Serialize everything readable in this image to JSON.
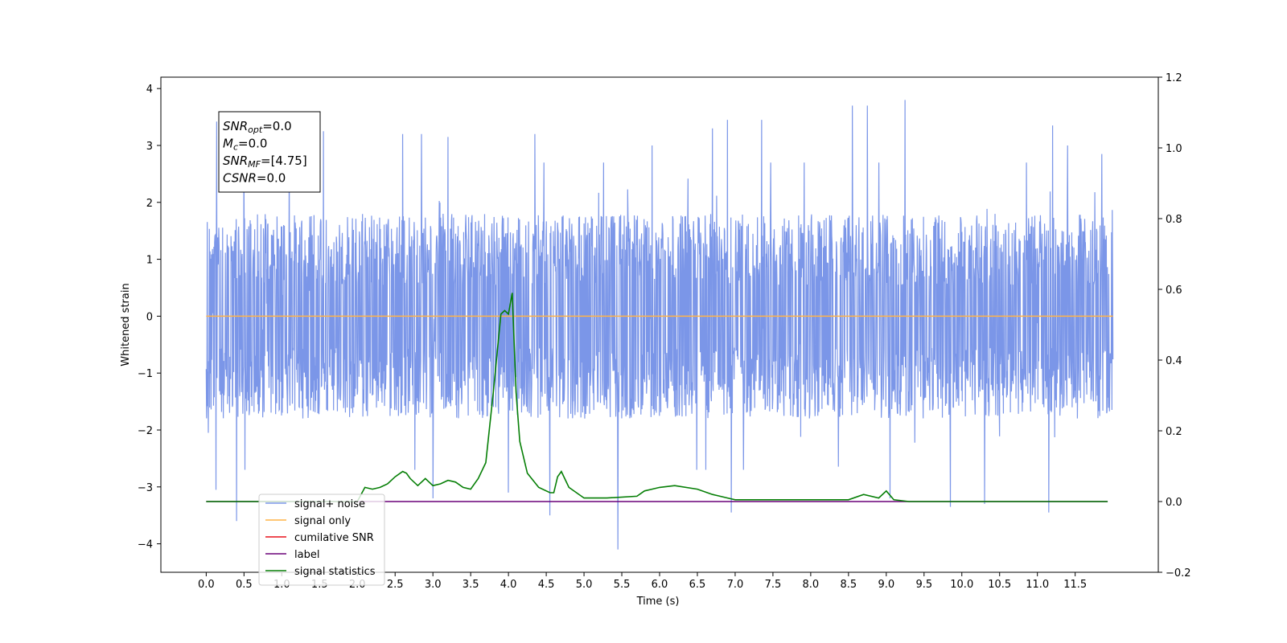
{
  "chart_data": {
    "type": "line",
    "xlabel": "Time (s)",
    "ylabel": "Whitened strain",
    "xlim": [
      -0.6,
      12.6
    ],
    "ylim": [
      -4.5,
      4.2
    ],
    "y2lim": [
      -0.2,
      1.2
    ],
    "x_ticks": [
      0.0,
      0.5,
      1.0,
      1.5,
      2.0,
      2.5,
      3.0,
      3.5,
      4.0,
      4.5,
      5.0,
      5.5,
      6.0,
      6.5,
      7.0,
      7.5,
      8.0,
      8.5,
      9.0,
      9.5,
      10.0,
      10.5,
      11.0,
      11.5
    ],
    "x_tick_labels": [
      "0.0",
      "0.5",
      "1.0",
      "1.5",
      "2.0",
      "2.5",
      "3.0",
      "3.5",
      "4.0",
      "4.5",
      "5.0",
      "5.5",
      "6.0",
      "6.5",
      "7.0",
      "7.5",
      "8.0",
      "8.5",
      "9.0",
      "9.5",
      "10.0",
      "10.5",
      "11.0",
      "11.5"
    ],
    "y_ticks": [
      -4,
      -3,
      -2,
      -1,
      0,
      1,
      2,
      3,
      4
    ],
    "y_tick_labels": [
      "−4",
      "−3",
      "−2",
      "−1",
      "0",
      "1",
      "2",
      "3",
      "4"
    ],
    "y2_ticks": [
      -0.2,
      0.0,
      0.2,
      0.4,
      0.6,
      0.8,
      1.0,
      1.2
    ],
    "y2_tick_labels": [
      "−0.2",
      "0.0",
      "0.2",
      "0.4",
      "0.6",
      "0.8",
      "1.0",
      "1.2"
    ],
    "grid": false,
    "legend_position": "lower-left",
    "annotation": {
      "lines": [
        {
          "main": "SNR",
          "sub": "opt",
          "rest": "=0.0"
        },
        {
          "main": "M",
          "sub": "c",
          "rest": "=0.0"
        },
        {
          "main": "SNR",
          "sub": "MF",
          "rest": "=[4.75]"
        },
        {
          "main": "CSNR",
          "sub": "",
          "rest": "=0.0"
        }
      ]
    },
    "series": [
      {
        "name": "signal+ noise",
        "color": "#7b96e8",
        "axis": "left",
        "kind": "noise",
        "x_range": [
          0.0,
          12.0
        ],
        "typical_range": [
          -1.8,
          1.8
        ],
        "peaks": [
          {
            "x": 0.03,
            "y": -2.05
          },
          {
            "x": 0.14,
            "y": 3.42
          },
          {
            "x": 0.13,
            "y": -3.05
          },
          {
            "x": 0.4,
            "y": -3.6
          },
          {
            "x": 0.5,
            "y": 2.9
          },
          {
            "x": 1.1,
            "y": 3.1
          },
          {
            "x": 1.55,
            "y": 3.25
          },
          {
            "x": 2.6,
            "y": 3.2
          },
          {
            "x": 2.85,
            "y": 3.2
          },
          {
            "x": 3.0,
            "y": -3.2
          },
          {
            "x": 3.2,
            "y": 3.15
          },
          {
            "x": 4.0,
            "y": -3.1
          },
          {
            "x": 4.35,
            "y": 3.2
          },
          {
            "x": 4.55,
            "y": -3.5
          },
          {
            "x": 5.45,
            "y": -4.1
          },
          {
            "x": 5.9,
            "y": 3.0
          },
          {
            "x": 6.7,
            "y": 3.3
          },
          {
            "x": 6.9,
            "y": 3.45
          },
          {
            "x": 6.95,
            "y": -3.45
          },
          {
            "x": 7.35,
            "y": 3.45
          },
          {
            "x": 8.55,
            "y": 3.7
          },
          {
            "x": 8.75,
            "y": 3.7
          },
          {
            "x": 9.05,
            "y": -3.2
          },
          {
            "x": 9.25,
            "y": 3.8
          },
          {
            "x": 9.85,
            "y": -3.35
          },
          {
            "x": 10.3,
            "y": -3.3
          },
          {
            "x": 11.15,
            "y": -3.45
          },
          {
            "x": 11.2,
            "y": 3.35
          },
          {
            "x": 11.4,
            "y": 3.0
          },
          {
            "x": 11.85,
            "y": 2.85
          }
        ]
      },
      {
        "name": "signal only",
        "color": "#ffb347",
        "axis": "left",
        "x": [
          0.0,
          12.0
        ],
        "values": [
          0.0,
          0.0
        ]
      },
      {
        "name": "cumilative SNR",
        "color": "#e8101a",
        "axis": "right",
        "x": [],
        "values": []
      },
      {
        "name": "label",
        "color": "#6a0078",
        "axis": "right",
        "x": [
          0.0,
          11.93
        ],
        "values": [
          0.0,
          0.0
        ]
      },
      {
        "name": "signal statistics",
        "color": "#067f06",
        "axis": "right",
        "x": [
          0.0,
          0.5,
          1.0,
          1.5,
          2.0,
          2.1,
          2.2,
          2.3,
          2.4,
          2.5,
          2.6,
          2.65,
          2.7,
          2.8,
          2.9,
          2.95,
          3.0,
          3.1,
          3.2,
          3.3,
          3.4,
          3.5,
          3.6,
          3.7,
          3.8,
          3.9,
          3.95,
          4.0,
          4.05,
          4.1,
          4.15,
          4.25,
          4.4,
          4.55,
          4.6,
          4.65,
          4.7,
          4.8,
          5.0,
          5.3,
          5.7,
          5.8,
          5.9,
          6.0,
          6.2,
          6.5,
          6.7,
          6.9,
          7.0,
          7.5,
          8.0,
          8.5,
          8.7,
          8.9,
          9.0,
          9.1,
          9.3,
          9.5,
          10.0,
          11.93
        ],
        "values": [
          0.0,
          0.0,
          0.0,
          0.0,
          0.0,
          0.04,
          0.035,
          0.04,
          0.05,
          0.07,
          0.085,
          0.08,
          0.065,
          0.045,
          0.065,
          0.055,
          0.045,
          0.05,
          0.06,
          0.055,
          0.04,
          0.035,
          0.065,
          0.11,
          0.31,
          0.53,
          0.54,
          0.53,
          0.59,
          0.31,
          0.17,
          0.08,
          0.04,
          0.025,
          0.025,
          0.07,
          0.085,
          0.04,
          0.01,
          0.01,
          0.015,
          0.03,
          0.035,
          0.04,
          0.045,
          0.035,
          0.02,
          0.01,
          0.005,
          0.005,
          0.005,
          0.005,
          0.02,
          0.01,
          0.03,
          0.005,
          0.0,
          0.0,
          0.0,
          0.0
        ]
      }
    ]
  }
}
